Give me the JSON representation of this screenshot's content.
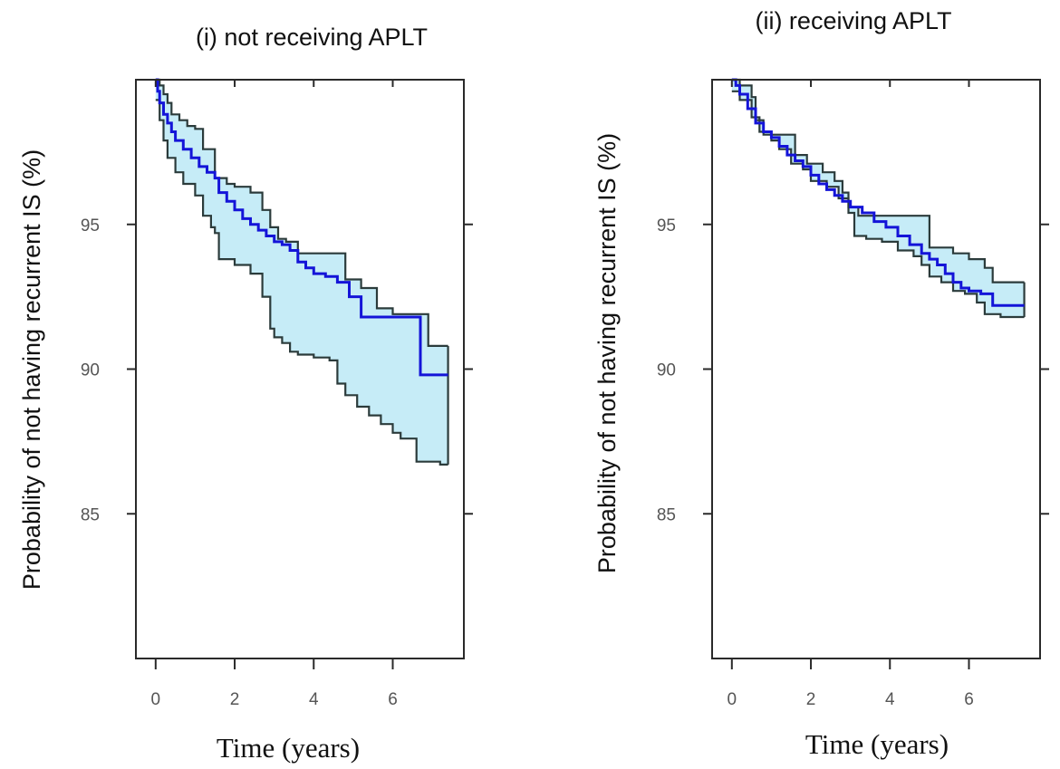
{
  "chart_data": [
    {
      "type": "line",
      "title": "(i) not receiving APLT",
      "xlabel": "Time (years)",
      "ylabel": "Probability of not having recurrent IS (%)",
      "xlim": [
        -0.5,
        7.8
      ],
      "ylim": [
        80,
        100
      ],
      "x_ticks": [
        0,
        2,
        4,
        6
      ],
      "x_tick_labels": [
        "0",
        "2",
        "4",
        "6"
      ],
      "y_ticks": [
        85,
        90,
        95
      ],
      "y_tick_labels": [
        "85",
        "90",
        "95"
      ],
      "colors": {
        "estimate": "#1414d8",
        "band": "#c6ecf7",
        "band_edge": "#2b3b3b"
      },
      "series": [
        {
          "name": "estimate",
          "x": [
            0,
            0.05,
            0.1,
            0.2,
            0.3,
            0.4,
            0.5,
            0.7,
            0.9,
            1.1,
            1.3,
            1.5,
            1.6,
            1.8,
            2.0,
            2.2,
            2.4,
            2.6,
            2.8,
            3.0,
            3.2,
            3.4,
            3.6,
            3.8,
            4.0,
            4.3,
            4.6,
            4.9,
            5.2,
            5.5,
            5.8,
            6.0,
            6.3,
            6.6,
            6.7,
            7.0,
            7.4
          ],
          "values": [
            100,
            99.6,
            99.2,
            98.8,
            98.5,
            98.2,
            97.9,
            97.6,
            97.3,
            97.0,
            96.8,
            96.6,
            96.1,
            95.8,
            95.5,
            95.2,
            95.0,
            94.8,
            94.6,
            94.4,
            94.3,
            94.1,
            93.7,
            93.5,
            93.3,
            93.2,
            93.0,
            92.5,
            91.8,
            91.8,
            91.8,
            91.8,
            91.8,
            91.8,
            89.8,
            89.8,
            89.8
          ]
        },
        {
          "name": "upper_ci",
          "x": [
            0,
            0.1,
            0.2,
            0.3,
            0.4,
            0.6,
            0.8,
            1.0,
            1.2,
            1.5,
            1.8,
            2.0,
            2.4,
            2.7,
            2.9,
            3.1,
            3.3,
            3.6,
            4.0,
            4.4,
            4.8,
            5.2,
            5.6,
            6.0,
            6.4,
            6.6,
            6.9,
            7.2,
            7.4
          ],
          "values": [
            100,
            99.8,
            99.5,
            99.2,
            98.8,
            98.6,
            98.4,
            98.3,
            97.6,
            96.6,
            96.4,
            96.3,
            96.1,
            95.5,
            94.9,
            94.5,
            94.4,
            94.0,
            94.0,
            94.0,
            93.1,
            92.8,
            92.1,
            91.9,
            91.9,
            91.9,
            90.8,
            90.8,
            90.8
          ]
        },
        {
          "name": "lower_ci",
          "x": [
            0,
            0.1,
            0.2,
            0.3,
            0.5,
            0.7,
            1.0,
            1.2,
            1.4,
            1.5,
            1.6,
            2.0,
            2.4,
            2.7,
            2.9,
            3.0,
            3.2,
            3.4,
            3.6,
            3.8,
            4.0,
            4.4,
            4.6,
            4.8,
            5.1,
            5.4,
            5.7,
            6.0,
            6.2,
            6.6,
            6.9,
            7.2,
            7.4
          ],
          "values": [
            99.3,
            98.6,
            97.9,
            97.3,
            96.8,
            96.4,
            96.0,
            95.3,
            94.9,
            94.7,
            93.8,
            93.6,
            93.3,
            92.5,
            91.4,
            91.1,
            90.9,
            90.6,
            90.5,
            90.5,
            90.4,
            90.3,
            89.5,
            89.1,
            88.7,
            88.4,
            88.1,
            87.8,
            87.6,
            86.8,
            86.8,
            86.7,
            86.7
          ]
        }
      ]
    },
    {
      "type": "line",
      "title": "(ii) receiving APLT",
      "xlabel": "Time (years)",
      "ylabel": "Probability of not having recurrent IS (%)",
      "xlim": [
        -0.5,
        7.8
      ],
      "ylim": [
        80,
        100
      ],
      "x_ticks": [
        0,
        2,
        4,
        6
      ],
      "x_tick_labels": [
        "0",
        "2",
        "4",
        "6"
      ],
      "y_ticks": [
        85,
        90,
        95
      ],
      "y_tick_labels": [
        "85",
        "90",
        "95"
      ],
      "colors": {
        "estimate": "#1414d8",
        "band": "#c6ecf7",
        "band_edge": "#2b3b3b"
      },
      "series": [
        {
          "name": "estimate",
          "x": [
            0,
            0.1,
            0.2,
            0.4,
            0.6,
            0.8,
            1.0,
            1.2,
            1.4,
            1.6,
            1.8,
            2.0,
            2.2,
            2.4,
            2.6,
            2.8,
            3.0,
            3.3,
            3.6,
            3.9,
            4.2,
            4.5,
            4.8,
            5.0,
            5.2,
            5.4,
            5.6,
            5.8,
            6.0,
            6.3,
            6.6,
            7.0,
            7.4
          ],
          "values": [
            100,
            99.8,
            99.5,
            99.0,
            98.5,
            98.2,
            98.0,
            97.7,
            97.4,
            97.2,
            97.0,
            96.7,
            96.4,
            96.2,
            96.0,
            95.8,
            95.6,
            95.4,
            95.1,
            94.9,
            94.6,
            94.3,
            94.0,
            93.8,
            93.6,
            93.3,
            93.0,
            92.8,
            92.7,
            92.6,
            92.2,
            92.2,
            92.2
          ]
        },
        {
          "name": "upper_ci",
          "x": [
            0,
            0.2,
            0.5,
            0.6,
            0.8,
            1.2,
            1.6,
            1.9,
            2.3,
            2.6,
            2.8,
            2.95,
            3.2,
            3.6,
            4.0,
            4.4,
            4.8,
            5.0,
            5.2,
            5.6,
            6.0,
            6.4,
            6.6,
            6.8,
            7.4
          ],
          "values": [
            100,
            99.8,
            99.4,
            98.6,
            98.1,
            98.1,
            97.4,
            97.1,
            96.8,
            96.5,
            96.1,
            95.6,
            95.3,
            95.3,
            95.3,
            95.3,
            95.3,
            94.2,
            94.2,
            94.0,
            93.8,
            93.5,
            93.0,
            93.0,
            93.0
          ]
        },
        {
          "name": "lower_ci",
          "x": [
            0,
            0.2,
            0.5,
            0.7,
            1.0,
            1.2,
            1.5,
            1.8,
            2.0,
            2.4,
            2.7,
            2.95,
            3.1,
            3.4,
            3.8,
            4.2,
            4.6,
            4.8,
            5.0,
            5.3,
            5.6,
            5.9,
            6.2,
            6.4,
            6.8,
            7.4
          ],
          "values": [
            99.6,
            99.3,
            98.7,
            98.2,
            97.9,
            97.6,
            97.1,
            96.9,
            96.5,
            96.3,
            95.9,
            95.4,
            94.6,
            94.5,
            94.4,
            94.1,
            93.9,
            93.6,
            93.2,
            93.0,
            92.7,
            92.6,
            92.3,
            91.9,
            91.8,
            91.8
          ]
        }
      ]
    }
  ]
}
